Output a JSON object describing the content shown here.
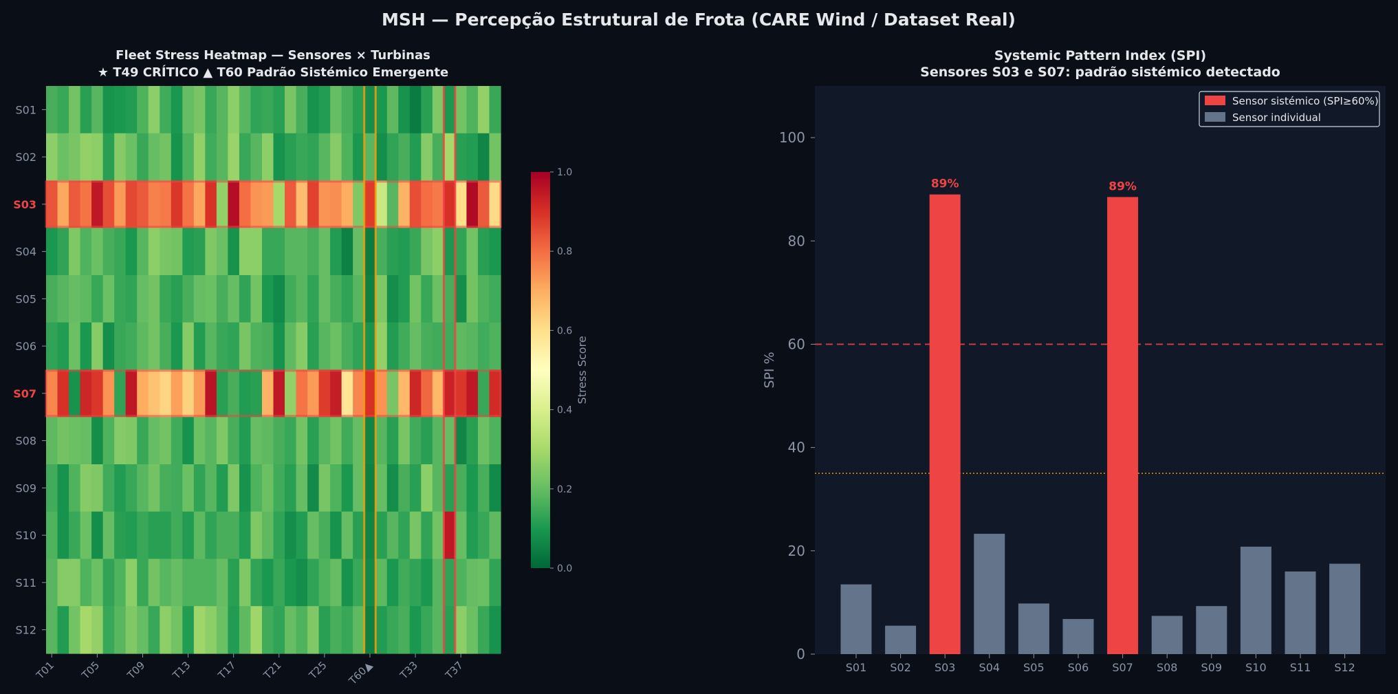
{
  "figure": {
    "title": "MSH — Percepção Estrutural de Frota (CARE Wind / Dataset Real)",
    "colors": {
      "background": "#0a0e17",
      "panel": "#111827",
      "systemic_red": "#ef4444",
      "individual_gray": "#64748b",
      "axis_text": "#8b95a7",
      "title_text": "#e5e7eb",
      "t60_line": "#f59e0b"
    }
  },
  "chart_data": [
    {
      "type": "heatmap",
      "title_line1": "Fleet Stress Heatmap — Sensores × Turbinas",
      "title_line2": "★ T49 CRÍTICO  ▲ T60 Padrão Sistémico Emergente",
      "rows": [
        "S01",
        "S02",
        "S03",
        "S04",
        "S05",
        "S06",
        "S07",
        "S08",
        "S09",
        "S10",
        "S11",
        "S12"
      ],
      "highlighted_rows": [
        "S03",
        "S07"
      ],
      "xtick_labels": [
        "T01",
        "T05",
        "T09",
        "T13",
        "T17",
        "T21",
        "T25",
        "T60▲",
        "T33",
        "T37"
      ],
      "xtick_columns": [
        0,
        4,
        8,
        12,
        16,
        20,
        24,
        28,
        32,
        36
      ],
      "num_columns": 40,
      "vertical_markers": [
        {
          "column": 28,
          "color": "#f59e0b"
        },
        {
          "column": 35,
          "color": "#ef4444"
        }
      ],
      "colorbar": {
        "label": "Stress Score",
        "min": 0.0,
        "max": 1.0,
        "ticks": [
          "0.0",
          "0.2",
          "0.4",
          "0.6",
          "0.8",
          "1.0"
        ]
      },
      "values": [
        [
          0.16,
          0.14,
          0.22,
          0.12,
          0.18,
          0.09,
          0.1,
          0.11,
          0.17,
          0.26,
          0.15,
          0.1,
          0.2,
          0.23,
          0.14,
          0.18,
          0.26,
          0.18,
          0.13,
          0.14,
          0.12,
          0.23,
          0.16,
          0.09,
          0.11,
          0.2,
          0.16,
          0.12,
          0.08,
          0.1,
          0.19,
          0.09,
          0.04,
          0.12,
          0.24,
          0.1,
          0.22,
          0.17,
          0.27,
          0.14
        ],
        [
          0.26,
          0.21,
          0.23,
          0.27,
          0.26,
          0.12,
          0.25,
          0.21,
          0.14,
          0.2,
          0.22,
          0.09,
          0.17,
          0.27,
          0.15,
          0.18,
          0.28,
          0.14,
          0.18,
          0.26,
          0.09,
          0.12,
          0.14,
          0.13,
          0.18,
          0.25,
          0.17,
          0.1,
          0.18,
          0.08,
          0.13,
          0.16,
          0.11,
          0.25,
          0.16,
          0.3,
          0.12,
          0.11,
          0.06,
          0.22
        ],
        [
          0.84,
          0.71,
          0.83,
          0.79,
          0.95,
          0.85,
          0.73,
          0.86,
          0.83,
          0.77,
          0.78,
          0.89,
          0.79,
          0.71,
          0.9,
          0.27,
          0.97,
          0.8,
          0.74,
          0.73,
          0.3,
          0.83,
          0.67,
          0.87,
          0.74,
          0.75,
          0.7,
          0.24,
          0.88,
          0.37,
          0.18,
          0.69,
          0.85,
          0.8,
          0.78,
          0.9,
          0.6,
          0.98,
          0.83,
          0.61
        ],
        [
          0.1,
          0.13,
          0.24,
          0.17,
          0.21,
          0.16,
          0.14,
          0.1,
          0.18,
          0.26,
          0.23,
          0.22,
          0.11,
          0.12,
          0.24,
          0.21,
          0.09,
          0.26,
          0.26,
          0.14,
          0.14,
          0.18,
          0.18,
          0.16,
          0.2,
          0.11,
          0.05,
          0.2,
          0.04,
          0.16,
          0.12,
          0.11,
          0.14,
          0.23,
          0.26,
          0.1,
          0.13,
          0.22,
          0.12,
          0.1
        ],
        [
          0.16,
          0.18,
          0.2,
          0.19,
          0.14,
          0.21,
          0.14,
          0.13,
          0.2,
          0.22,
          0.14,
          0.12,
          0.16,
          0.2,
          0.21,
          0.16,
          0.2,
          0.13,
          0.22,
          0.1,
          0.07,
          0.15,
          0.18,
          0.13,
          0.2,
          0.16,
          0.13,
          0.18,
          0.05,
          0.24,
          0.08,
          0.11,
          0.22,
          0.14,
          0.21,
          0.16,
          0.08,
          0.22,
          0.17,
          0.15
        ],
        [
          0.13,
          0.11,
          0.21,
          0.1,
          0.25,
          0.08,
          0.14,
          0.15,
          0.19,
          0.22,
          0.16,
          0.1,
          0.25,
          0.11,
          0.18,
          0.14,
          0.13,
          0.23,
          0.17,
          0.16,
          0.09,
          0.19,
          0.25,
          0.12,
          0.18,
          0.21,
          0.16,
          0.13,
          0.09,
          0.27,
          0.11,
          0.15,
          0.2,
          0.16,
          0.15,
          0.15,
          0.19,
          0.18,
          0.15,
          0.17
        ],
        [
          0.76,
          0.9,
          0.09,
          0.92,
          0.89,
          0.74,
          0.13,
          0.95,
          0.7,
          0.66,
          0.62,
          0.72,
          0.63,
          0.73,
          0.96,
          0.12,
          0.16,
          0.11,
          0.12,
          0.69,
          0.95,
          0.27,
          0.79,
          0.73,
          0.88,
          0.94,
          0.58,
          0.76,
          0.9,
          0.74,
          0.23,
          0.68,
          0.92,
          0.81,
          0.68,
          0.93,
          0.89,
          0.95,
          0.14,
          0.91
        ],
        [
          0.19,
          0.22,
          0.21,
          0.2,
          0.08,
          0.17,
          0.25,
          0.24,
          0.14,
          0.2,
          0.22,
          0.15,
          0.09,
          0.21,
          0.18,
          0.24,
          0.16,
          0.11,
          0.2,
          0.19,
          0.16,
          0.14,
          0.22,
          0.12,
          0.18,
          0.22,
          0.15,
          0.2,
          0.06,
          0.18,
          0.12,
          0.23,
          0.15,
          0.12,
          0.18,
          0.2,
          0.06,
          0.12,
          0.21,
          0.17
        ],
        [
          0.15,
          0.09,
          0.17,
          0.25,
          0.24,
          0.15,
          0.11,
          0.14,
          0.18,
          0.22,
          0.16,
          0.15,
          0.21,
          0.13,
          0.18,
          0.11,
          0.24,
          0.09,
          0.17,
          0.21,
          0.15,
          0.12,
          0.2,
          0.07,
          0.23,
          0.17,
          0.1,
          0.2,
          0.05,
          0.2,
          0.08,
          0.16,
          0.12,
          0.26,
          0.18,
          0.12,
          0.16,
          0.1,
          0.16,
          0.07
        ],
        [
          0.17,
          0.09,
          0.14,
          0.21,
          0.08,
          0.2,
          0.12,
          0.11,
          0.14,
          0.12,
          0.12,
          0.15,
          0.11,
          0.19,
          0.13,
          0.16,
          0.16,
          0.11,
          0.24,
          0.19,
          0.13,
          0.08,
          0.11,
          0.2,
          0.16,
          0.09,
          0.2,
          0.12,
          0.06,
          0.12,
          0.18,
          0.13,
          0.23,
          0.13,
          0.22,
          0.95,
          0.2,
          0.11,
          0.14,
          0.19
        ],
        [
          0.18,
          0.25,
          0.25,
          0.17,
          0.21,
          0.13,
          0.17,
          0.26,
          0.14,
          0.22,
          0.18,
          0.2,
          0.17,
          0.17,
          0.17,
          0.2,
          0.12,
          0.24,
          0.13,
          0.1,
          0.14,
          0.1,
          0.08,
          0.13,
          0.17,
          0.2,
          0.09,
          0.14,
          0.07,
          0.19,
          0.1,
          0.15,
          0.13,
          0.1,
          0.18,
          0.13,
          0.17,
          0.2,
          0.21,
          0.13
        ],
        [
          0.18,
          0.11,
          0.22,
          0.3,
          0.27,
          0.14,
          0.18,
          0.24,
          0.2,
          0.14,
          0.26,
          0.22,
          0.11,
          0.29,
          0.26,
          0.21,
          0.11,
          0.19,
          0.29,
          0.15,
          0.13,
          0.2,
          0.17,
          0.24,
          0.12,
          0.16,
          0.14,
          0.19,
          0.05,
          0.11,
          0.14,
          0.16,
          0.1,
          0.14,
          0.18,
          0.12,
          0.26,
          0.21,
          0.14,
          0.09
        ]
      ]
    },
    {
      "type": "bar",
      "title_line1": "Systemic Pattern Index (SPI)",
      "title_line2": "Sensores S03 e S07: padrão sistémico detectado",
      "ylabel": "SPI %",
      "ylim": [
        0,
        110
      ],
      "yticks": [
        "0",
        "20",
        "40",
        "60",
        "80",
        "100"
      ],
      "categories": [
        "S01",
        "S02",
        "S03",
        "S04",
        "S05",
        "S06",
        "S07",
        "S08",
        "S09",
        "S10",
        "S11",
        "S12"
      ],
      "values": [
        13.5,
        5.5,
        89.0,
        23.3,
        9.8,
        6.8,
        88.5,
        7.4,
        9.3,
        20.8,
        16.0,
        17.5
      ],
      "systemic": [
        false,
        false,
        true,
        false,
        false,
        false,
        true,
        false,
        false,
        false,
        false,
        false
      ],
      "data_labels": [
        {
          "category": "S03",
          "text": "89%"
        },
        {
          "category": "S07",
          "text": "89%"
        }
      ],
      "threshold_lines": [
        {
          "value": 60,
          "style": "dashed",
          "color": "#ef4444"
        },
        {
          "value": 35,
          "style": "dotted",
          "color": "#f59e0b"
        }
      ],
      "legend": {
        "placement": "top-right",
        "entries": [
          {
            "label": "Sensor sistémico (SPI≥60%)",
            "color": "#ef4444"
          },
          {
            "label": "Sensor individual",
            "color": "#64748b"
          }
        ]
      }
    }
  ]
}
